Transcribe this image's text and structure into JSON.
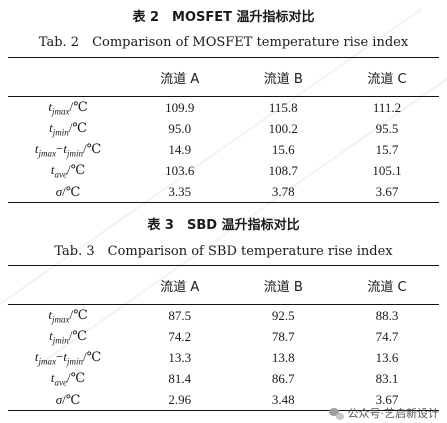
{
  "table2": {
    "caption_zh": "表 2　MOSFET 温升指标对比",
    "caption_en": "Tab. 2　Comparison of MOSFET temperature rise index",
    "headers": [
      "",
      "流道 A",
      "流道 B",
      "流道 C"
    ],
    "rows": [
      {
        "v": "t",
        "s1": "jmax",
        "op": "",
        "v2": "",
        "s2": "",
        "unit": "/℃",
        "values": [
          "109.9",
          "115.8",
          "111.2"
        ]
      },
      {
        "v": "t",
        "s1": "jmin",
        "op": "",
        "v2": "",
        "s2": "",
        "unit": "/℃",
        "values": [
          "95.0",
          "100.2",
          "95.5"
        ]
      },
      {
        "v": "t",
        "s1": "jmax",
        "op": "−",
        "v2": "t",
        "s2": "jmin",
        "unit": "/℃",
        "values": [
          "14.9",
          "15.6",
          "15.7"
        ]
      },
      {
        "v": "t",
        "s1": "ave",
        "op": "",
        "v2": "",
        "s2": "",
        "unit": "/℃",
        "values": [
          "103.6",
          "108.7",
          "105.1"
        ]
      },
      {
        "v": "σ",
        "s1": "",
        "op": "",
        "v2": "",
        "s2": "",
        "unit": "/℃",
        "values": [
          "3.35",
          "3.78",
          "3.67"
        ]
      }
    ]
  },
  "table3": {
    "caption_zh": "表 3　SBD 温升指标对比",
    "caption_en": "Tab. 3　Comparison of SBD temperature rise index",
    "headers": [
      "",
      "流道 A",
      "流道 B",
      "流道 C"
    ],
    "rows": [
      {
        "v": "t",
        "s1": "jmax",
        "op": "",
        "v2": "",
        "s2": "",
        "unit": "/℃",
        "values": [
          "87.5",
          "92.5",
          "88.3"
        ]
      },
      {
        "v": "t",
        "s1": "jmin",
        "op": "",
        "v2": "",
        "s2": "",
        "unit": "/℃",
        "values": [
          "74.2",
          "78.7",
          "74.7"
        ]
      },
      {
        "v": "t",
        "s1": "jmax",
        "op": "−",
        "v2": "t",
        "s2": "jmin",
        "unit": "/℃",
        "values": [
          "13.3",
          "13.8",
          "13.6"
        ]
      },
      {
        "v": "t",
        "s1": "ave",
        "op": "",
        "v2": "",
        "s2": "",
        "unit": "/℃",
        "values": [
          "81.4",
          "86.7",
          "83.1"
        ]
      },
      {
        "v": "σ",
        "s1": "",
        "op": "",
        "v2": "",
        "s2": "",
        "unit": "/℃",
        "values": [
          "2.96",
          "3.48",
          "3.67"
        ]
      }
    ]
  },
  "watermark": {
    "text": "公众号·艺启新设计"
  }
}
